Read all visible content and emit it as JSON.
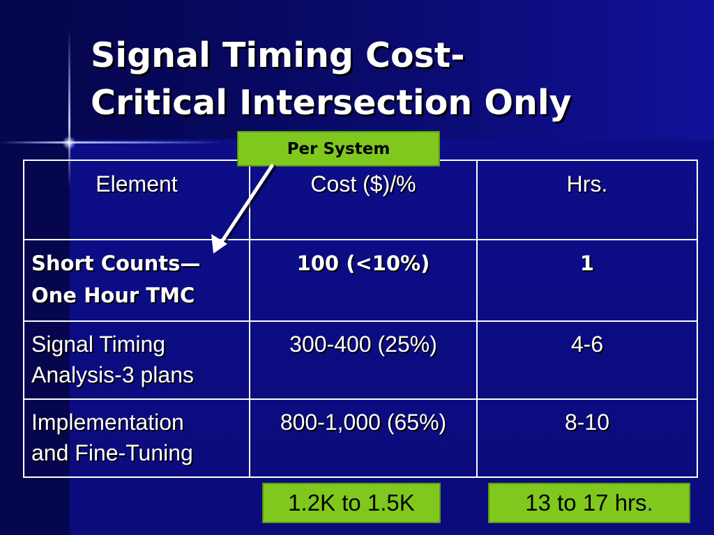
{
  "slide": {
    "title_line1": "Signal Timing Cost-",
    "title_line2": "Critical Intersection Only",
    "callout": "Per System",
    "table": {
      "headers": [
        "Element",
        "Cost ($)/%",
        "Hrs."
      ],
      "rows": [
        {
          "element_line1": "Short Counts—",
          "element_line2": "One Hour TMC",
          "cost": "100 (<10%)",
          "hours": "1"
        },
        {
          "element_line1": "Signal Timing",
          "element_line2": "Analysis-3 plans",
          "cost": "300-400 (25%)",
          "hours": "4-6"
        },
        {
          "element_line1": "Implementation",
          "element_line2": "and Fine-Tuning",
          "cost": "800-1,000 (65%)",
          "hours": "8-10"
        }
      ]
    },
    "totals": {
      "cost": "1.2K to 1.5K",
      "hours": "13 to 17 hrs",
      "hours_suffix": "."
    },
    "colors": {
      "background": "#0b0b78",
      "callout_fill": "#80c81e",
      "text": "#ffffff"
    }
  }
}
